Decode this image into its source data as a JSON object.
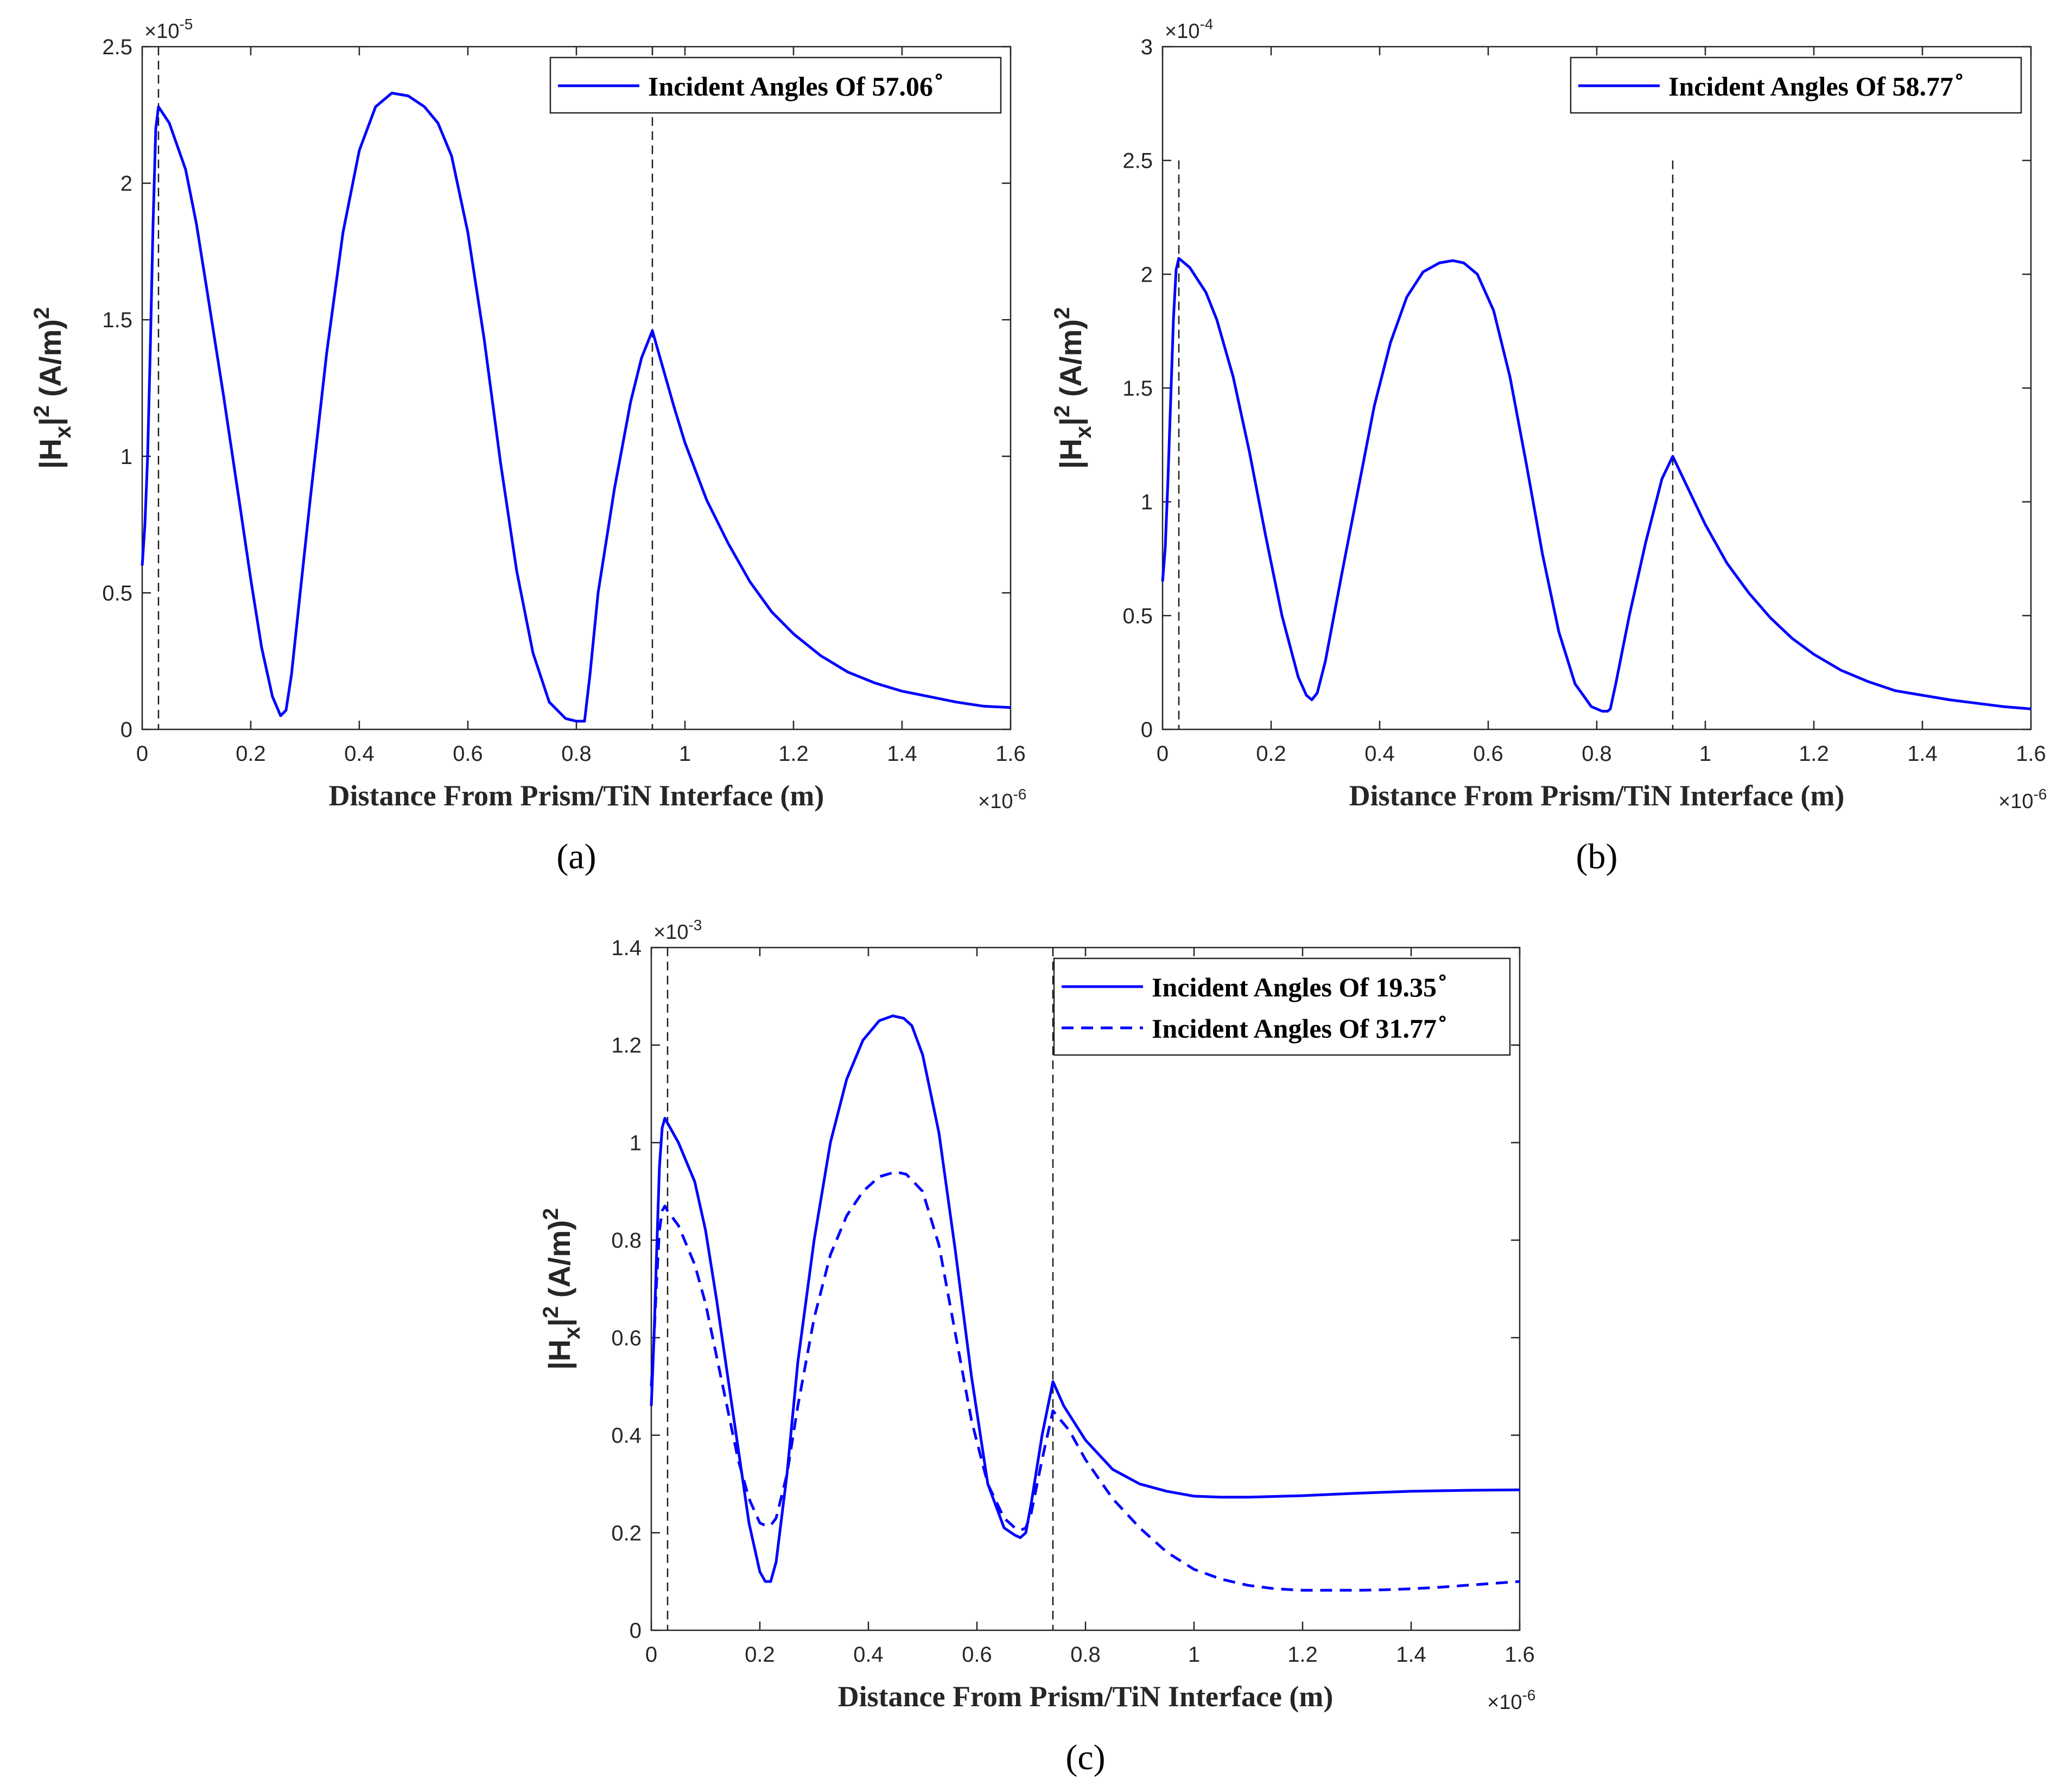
{
  "figure": {
    "panels": [
      "(a)",
      "(b)",
      "(c)"
    ]
  },
  "chart_data": [
    {
      "type": "line",
      "panel_label": "(a)",
      "xlabel": "Distance From Prism/TiN Interface (m)",
      "ylabel_parts": [
        "|H",
        "x",
        "|",
        "2",
        " (A/m)",
        "2"
      ],
      "x_multiplier": "×10",
      "x_multiplier_exp": "-6",
      "y_multiplier": "×10",
      "y_multiplier_exp": "-5",
      "xlim": [
        0,
        1.6
      ],
      "ylim": [
        0,
        2.5
      ],
      "xticks": [
        0,
        0.2,
        0.4,
        0.6,
        0.8,
        1,
        1.2,
        1.4,
        1.6
      ],
      "yticks": [
        0,
        0.5,
        1,
        1.5,
        2,
        2.5
      ],
      "xtick_labels": [
        "0",
        "0.2",
        "0.4",
        "0.6",
        "0.8",
        "1",
        "1.2",
        "1.4",
        "1.6"
      ],
      "ytick_labels": [
        "0",
        "0.5",
        "1",
        "1.5",
        "2",
        "2.5"
      ],
      "vlines": [
        0.03,
        0.94
      ],
      "grid": false,
      "legend_position": "top-right",
      "series": [
        {
          "name": "Incident Angles Of 57.06",
          "name_sup": "∘",
          "style": "solid",
          "color": "#0000ff",
          "x": [
            0,
            0.005,
            0.01,
            0.015,
            0.02,
            0.025,
            0.03,
            0.05,
            0.08,
            0.1,
            0.12,
            0.15,
            0.18,
            0.2,
            0.22,
            0.24,
            0.255,
            0.265,
            0.275,
            0.29,
            0.31,
            0.34,
            0.37,
            0.4,
            0.43,
            0.46,
            0.49,
            0.52,
            0.545,
            0.57,
            0.6,
            0.63,
            0.66,
            0.69,
            0.72,
            0.75,
            0.78,
            0.8,
            0.815,
            0.825,
            0.84,
            0.87,
            0.9,
            0.92,
            0.94,
            0.96,
            0.98,
            1.0,
            1.04,
            1.08,
            1.12,
            1.16,
            1.2,
            1.25,
            1.3,
            1.35,
            1.4,
            1.45,
            1.5,
            1.55,
            1.6
          ],
          "y": [
            0.6,
            0.75,
            1.0,
            1.4,
            1.85,
            2.2,
            2.28,
            2.22,
            2.05,
            1.85,
            1.6,
            1.22,
            0.82,
            0.55,
            0.3,
            0.12,
            0.05,
            0.07,
            0.2,
            0.48,
            0.85,
            1.38,
            1.82,
            2.12,
            2.28,
            2.33,
            2.32,
            2.28,
            2.22,
            2.1,
            1.82,
            1.43,
            0.98,
            0.58,
            0.28,
            0.1,
            0.04,
            0.03,
            0.03,
            0.2,
            0.5,
            0.88,
            1.2,
            1.36,
            1.46,
            1.32,
            1.18,
            1.05,
            0.84,
            0.68,
            0.54,
            0.43,
            0.35,
            0.27,
            0.21,
            0.17,
            0.14,
            0.12,
            0.1,
            0.085,
            0.08
          ]
        }
      ]
    },
    {
      "type": "line",
      "panel_label": "(b)",
      "xlabel": "Distance From Prism/TiN Interface (m)",
      "ylabel_parts": [
        "|H",
        "x",
        "|",
        "2",
        " (A/m)",
        "2"
      ],
      "x_multiplier": "×10",
      "x_multiplier_exp": "-6",
      "y_multiplier": "×10",
      "y_multiplier_exp": "-4",
      "xlim": [
        0,
        1.6
      ],
      "ylim": [
        0,
        3
      ],
      "xticks": [
        0,
        0.2,
        0.4,
        0.6,
        0.8,
        1,
        1.2,
        1.4,
        1.6
      ],
      "yticks": [
        0,
        0.5,
        1,
        1.5,
        2,
        2.5,
        3
      ],
      "xtick_labels": [
        "0",
        "0.2",
        "0.4",
        "0.6",
        "0.8",
        "1",
        "1.2",
        "1.4",
        "1.6"
      ],
      "ytick_labels": [
        "0",
        "0.5",
        "1",
        "1.5",
        "2",
        "2.5",
        "3"
      ],
      "vlines": [
        0.03,
        0.94
      ],
      "vline_top": 2.5,
      "grid": false,
      "legend_position": "top-right",
      "series": [
        {
          "name": "Incident Angles Of 58.77",
          "name_sup": "∘",
          "style": "solid",
          "color": "#0000ff",
          "x": [
            0,
            0.005,
            0.01,
            0.015,
            0.02,
            0.025,
            0.03,
            0.05,
            0.08,
            0.1,
            0.13,
            0.16,
            0.19,
            0.22,
            0.25,
            0.265,
            0.275,
            0.285,
            0.3,
            0.33,
            0.36,
            0.39,
            0.42,
            0.45,
            0.48,
            0.51,
            0.535,
            0.555,
            0.58,
            0.61,
            0.64,
            0.67,
            0.7,
            0.73,
            0.76,
            0.79,
            0.81,
            0.82,
            0.825,
            0.835,
            0.86,
            0.89,
            0.92,
            0.94,
            0.96,
            0.98,
            1.0,
            1.04,
            1.08,
            1.12,
            1.16,
            1.2,
            1.25,
            1.3,
            1.35,
            1.4,
            1.45,
            1.5,
            1.55,
            1.6
          ],
          "y": [
            0.65,
            0.8,
            1.1,
            1.45,
            1.8,
            2.02,
            2.07,
            2.03,
            1.92,
            1.8,
            1.55,
            1.22,
            0.85,
            0.5,
            0.23,
            0.15,
            0.13,
            0.16,
            0.3,
            0.68,
            1.05,
            1.42,
            1.7,
            1.9,
            2.01,
            2.05,
            2.06,
            2.05,
            2.0,
            1.84,
            1.55,
            1.17,
            0.77,
            0.43,
            0.2,
            0.1,
            0.08,
            0.08,
            0.09,
            0.2,
            0.5,
            0.82,
            1.1,
            1.2,
            1.1,
            1.0,
            0.9,
            0.73,
            0.6,
            0.49,
            0.4,
            0.33,
            0.26,
            0.21,
            0.17,
            0.15,
            0.13,
            0.115,
            0.1,
            0.09
          ]
        }
      ]
    },
    {
      "type": "line",
      "panel_label": "(c)",
      "xlabel": "Distance From Prism/TiN Interface (m)",
      "ylabel_parts": [
        "|H",
        "x",
        "|",
        "2",
        " (A/m)",
        "2"
      ],
      "x_multiplier": "×10",
      "x_multiplier_exp": "-6",
      "y_multiplier": "×10",
      "y_multiplier_exp": "-3",
      "xlim": [
        0,
        1.6
      ],
      "ylim": [
        0,
        1.4
      ],
      "xticks": [
        0,
        0.2,
        0.4,
        0.6,
        0.8,
        1,
        1.2,
        1.4,
        1.6
      ],
      "yticks": [
        0,
        0.2,
        0.4,
        0.6,
        0.8,
        1,
        1.2,
        1.4
      ],
      "xtick_labels": [
        "0",
        "0.2",
        "0.4",
        "0.6",
        "0.8",
        "1",
        "1.2",
        "1.4",
        "1.6"
      ],
      "ytick_labels": [
        "0",
        "0.2",
        "0.4",
        "0.6",
        "0.8",
        "1",
        "1.2",
        "1.4"
      ],
      "vlines": [
        0.03,
        0.74
      ],
      "grid": false,
      "legend_position": "top-right",
      "series": [
        {
          "name": "Incident Angles Of 19.35",
          "name_sup": "∘",
          "style": "solid",
          "color": "#0000ff",
          "x": [
            0,
            0.005,
            0.01,
            0.015,
            0.02,
            0.025,
            0.03,
            0.05,
            0.08,
            0.1,
            0.12,
            0.15,
            0.18,
            0.2,
            0.21,
            0.22,
            0.23,
            0.25,
            0.27,
            0.3,
            0.33,
            0.36,
            0.39,
            0.42,
            0.445,
            0.465,
            0.48,
            0.5,
            0.53,
            0.56,
            0.59,
            0.62,
            0.65,
            0.67,
            0.68,
            0.69,
            0.7,
            0.72,
            0.74,
            0.76,
            0.8,
            0.85,
            0.9,
            0.95,
            1.0,
            1.05,
            1.1,
            1.2,
            1.3,
            1.4,
            1.5,
            1.6
          ],
          "y": [
            0.46,
            0.6,
            0.78,
            0.95,
            1.03,
            1.05,
            1.04,
            1.0,
            0.92,
            0.82,
            0.68,
            0.45,
            0.22,
            0.12,
            0.1,
            0.1,
            0.14,
            0.32,
            0.55,
            0.8,
            1.0,
            1.13,
            1.21,
            1.25,
            1.26,
            1.255,
            1.24,
            1.18,
            1.02,
            0.78,
            0.52,
            0.3,
            0.21,
            0.195,
            0.19,
            0.2,
            0.26,
            0.4,
            0.51,
            0.46,
            0.39,
            0.33,
            0.3,
            0.285,
            0.275,
            0.273,
            0.273,
            0.276,
            0.281,
            0.285,
            0.287,
            0.288
          ]
        },
        {
          "name": "Incident Angles Of 31.77",
          "name_sup": "∘",
          "style": "dashed",
          "color": "#0000ff",
          "x": [
            0,
            0.005,
            0.01,
            0.015,
            0.02,
            0.025,
            0.03,
            0.05,
            0.08,
            0.1,
            0.13,
            0.16,
            0.18,
            0.2,
            0.21,
            0.22,
            0.23,
            0.25,
            0.27,
            0.3,
            0.33,
            0.36,
            0.39,
            0.42,
            0.45,
            0.47,
            0.5,
            0.53,
            0.56,
            0.59,
            0.62,
            0.65,
            0.67,
            0.68,
            0.69,
            0.7,
            0.72,
            0.74,
            0.77,
            0.8,
            0.85,
            0.9,
            0.95,
            1.0,
            1.05,
            1.1,
            1.15,
            1.2,
            1.25,
            1.3,
            1.35,
            1.4,
            1.45,
            1.5,
            1.55,
            1.6
          ],
          "y": [
            0.5,
            0.6,
            0.72,
            0.82,
            0.86,
            0.87,
            0.86,
            0.83,
            0.75,
            0.67,
            0.51,
            0.35,
            0.27,
            0.22,
            0.215,
            0.215,
            0.23,
            0.32,
            0.46,
            0.64,
            0.77,
            0.85,
            0.9,
            0.93,
            0.94,
            0.935,
            0.9,
            0.79,
            0.61,
            0.43,
            0.3,
            0.23,
            0.21,
            0.205,
            0.21,
            0.24,
            0.35,
            0.45,
            0.41,
            0.35,
            0.27,
            0.21,
            0.16,
            0.125,
            0.105,
            0.092,
            0.085,
            0.082,
            0.082,
            0.082,
            0.083,
            0.085,
            0.088,
            0.092,
            0.096,
            0.1
          ]
        }
      ]
    }
  ]
}
